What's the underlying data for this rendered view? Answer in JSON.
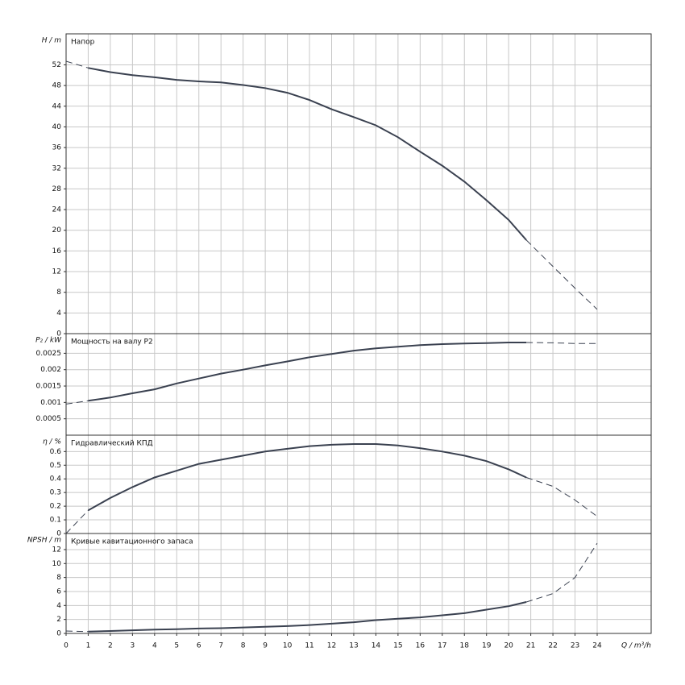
{
  "chart_data": [
    {
      "type": "line",
      "title": "Напор",
      "y_label": "H / m",
      "color": "#3a4150",
      "x": [
        0,
        1,
        2,
        3,
        4,
        5,
        6,
        7,
        8,
        9,
        10,
        11,
        12,
        13,
        14,
        15,
        16,
        17,
        18,
        19,
        20,
        20.8,
        22,
        23,
        24
      ],
      "values": [
        null,
        51.4,
        50.6,
        50,
        49.6,
        49.1,
        48.8,
        48.6,
        48.1,
        47.5,
        46.6,
        45.2,
        43.4,
        41.9,
        40.3,
        38,
        35.2,
        32.5,
        29.4,
        25.8,
        22,
        18.1,
        null,
        null,
        null
      ],
      "values_extrapolated": [
        52.7,
        51.4,
        null,
        null,
        null,
        null,
        null,
        null,
        null,
        null,
        null,
        null,
        null,
        null,
        null,
        null,
        null,
        null,
        null,
        null,
        null,
        18.1,
        13,
        8.8,
        4.7
      ],
      "ylim": [
        0,
        58
      ],
      "yticks": [
        0,
        4,
        8,
        12,
        16,
        20,
        24,
        28,
        32,
        36,
        40,
        44,
        48,
        52
      ],
      "grid": true
    },
    {
      "type": "line",
      "title": "Мощность на валу P2",
      "y_label": "P₂ / kW",
      "color": "#3a4150",
      "x": [
        0,
        1,
        2,
        3,
        4,
        5,
        6,
        7,
        8,
        9,
        10,
        11,
        12,
        13,
        14,
        15,
        16,
        17,
        18,
        19,
        20,
        20.8,
        22,
        23,
        24
      ],
      "values": [
        null,
        0.00105,
        0.00115,
        0.00128,
        0.0014,
        0.00158,
        0.00173,
        0.00188,
        0.002,
        0.00213,
        0.00225,
        0.00238,
        0.00248,
        0.00258,
        0.00265,
        0.0027,
        0.00275,
        0.00278,
        0.0028,
        0.00281,
        0.00283,
        0.00283,
        null,
        null,
        null
      ],
      "values_extrapolated": [
        0.00095,
        0.00105,
        null,
        null,
        null,
        null,
        null,
        null,
        null,
        null,
        null,
        null,
        null,
        null,
        null,
        null,
        null,
        null,
        null,
        null,
        null,
        0.00283,
        0.00282,
        0.0028,
        0.0028
      ],
      "ylim": [
        0,
        0.0031
      ],
      "yticks": [
        0.0005,
        0.001,
        0.0015,
        0.002,
        0.0025
      ],
      "grid": true
    },
    {
      "type": "line",
      "title": "Гидравлический КПД",
      "y_label": "η / %",
      "color": "#3a4150",
      "x": [
        0,
        1,
        2,
        3,
        4,
        5,
        6,
        7,
        8,
        9,
        10,
        11,
        12,
        13,
        14,
        15,
        16,
        17,
        18,
        19,
        20,
        20.8,
        22,
        23,
        24
      ],
      "values": [
        null,
        0.17,
        0.26,
        0.34,
        0.41,
        0.46,
        0.51,
        0.54,
        0.57,
        0.6,
        0.62,
        0.64,
        0.65,
        0.655,
        0.655,
        0.645,
        0.625,
        0.6,
        0.57,
        0.53,
        0.47,
        0.41,
        null,
        null,
        null
      ],
      "values_extrapolated": [
        0,
        0.17,
        null,
        null,
        null,
        null,
        null,
        null,
        null,
        null,
        null,
        null,
        null,
        null,
        null,
        null,
        null,
        null,
        null,
        null,
        null,
        0.41,
        0.345,
        0.245,
        0.125
      ],
      "ylim": [
        0,
        0.72
      ],
      "yticks": [
        0,
        0.1,
        0.2,
        0.3,
        0.4,
        0.5,
        0.6
      ],
      "grid": true
    },
    {
      "type": "line",
      "title": "Кривые кавитационного запаса",
      "y_label": "NPSH / m",
      "x_label": "Q / m³/h",
      "color": "#3a4150",
      "x": [
        0,
        1,
        2,
        3,
        4,
        5,
        6,
        7,
        8,
        9,
        10,
        11,
        12,
        13,
        14,
        15,
        16,
        17,
        18,
        19,
        20,
        20.8,
        22,
        23,
        24
      ],
      "values": [
        null,
        0.25,
        0.35,
        0.45,
        0.55,
        0.6,
        0.7,
        0.75,
        0.85,
        0.95,
        1.05,
        1.2,
        1.4,
        1.6,
        1.9,
        2.1,
        2.3,
        2.6,
        2.9,
        3.4,
        3.9,
        4.5,
        null,
        null,
        null
      ],
      "values_extrapolated": [
        0.35,
        0.25,
        null,
        null,
        null,
        null,
        null,
        null,
        null,
        null,
        null,
        null,
        null,
        null,
        null,
        null,
        null,
        null,
        null,
        null,
        null,
        4.5,
        5.7,
        8,
        12.9
      ],
      "ylim": [
        0,
        14.3
      ],
      "yticks": [
        0,
        2,
        4,
        6,
        8,
        10,
        12
      ],
      "grid": true,
      "xlim": [
        0,
        26.44
      ],
      "xticks": [
        0,
        1,
        2,
        3,
        4,
        5,
        6,
        7,
        8,
        9,
        10,
        11,
        12,
        13,
        14,
        15,
        16,
        17,
        18,
        19,
        20,
        21,
        22,
        23,
        24
      ]
    }
  ]
}
